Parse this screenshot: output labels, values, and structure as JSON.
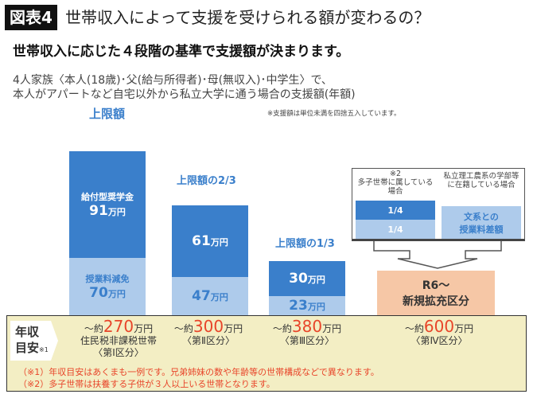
{
  "header": {
    "fig_tag": "図表4",
    "title": "世帯収入によって支援を受けられる額が変わるの？",
    "subtitle": "世帯収入に応じた４段階の基準で支援額が決まります。",
    "desc_1": "4人家族〈本人(18歳)･父(給与所得者)･母(無収入)･中学生〉で、",
    "desc_2": "本人がアパートなど自宅以外から私立大学に通う場合の支援額(年額)",
    "note": "※支援額は単位未満を四捨五入しています。"
  },
  "chart_data": {
    "type": "bar",
    "stacked": true,
    "unit": "万円",
    "categories": [
      "第Ⅰ区分",
      "第Ⅱ区分",
      "第Ⅲ区分",
      "第Ⅳ区分"
    ],
    "caps": [
      "上限額",
      "上限額の2/3",
      "上限額の1/3",
      ""
    ],
    "series": [
      {
        "name": "給付型奨学金",
        "values": [
          91,
          61,
          30,
          null
        ],
        "color": "#3a7fcb"
      },
      {
        "name": "授業料減免",
        "values": [
          70,
          47,
          23,
          null
        ],
        "color": "#aecbeb"
      }
    ],
    "labels": {
      "s1": "給付型奨学金",
      "s2": "授業料減免",
      "v1": [
        "91",
        "61",
        "30"
      ],
      "v2": [
        "70",
        "47",
        "23"
      ],
      "unit": "万円"
    }
  },
  "expansion": {
    "note_mark": "※2",
    "case_a": "多子世帯に属している場合",
    "case_b": "私立理工農系の学部等に在籍している場合",
    "a_top": "1/4",
    "a_bottom": "1/4",
    "b_text_1": "文系との",
    "b_text_2": "授業料差額",
    "new_1": "R6〜",
    "new_2": "新規拡充区分"
  },
  "income": {
    "label_1": "年収",
    "label_2": "目安",
    "label_note": "※1",
    "items": [
      {
        "pre": "〜約",
        "num": "270",
        "unit": "万円",
        "sub1": "住民税非課税世帯",
        "sub2": "〈第Ⅰ区分〉"
      },
      {
        "pre": "〜約",
        "num": "300",
        "unit": "万円",
        "sub1": "〈第Ⅱ区分〉",
        "sub2": ""
      },
      {
        "pre": "〜約",
        "num": "380",
        "unit": "万円",
        "sub1": "〈第Ⅲ区分〉",
        "sub2": ""
      },
      {
        "pre": "〜約",
        "num": "600",
        "unit": "万円",
        "sub1": "〈第Ⅳ区分〉",
        "sub2": ""
      }
    ],
    "footnote_1": "（※1）年収目安はあくまも一例です。兄弟姉妹の数や年齢等の世帯構成などで異なります。",
    "footnote_2": "（※2）多子世帯は扶養する子供が３人以上いる世帯となります。"
  }
}
